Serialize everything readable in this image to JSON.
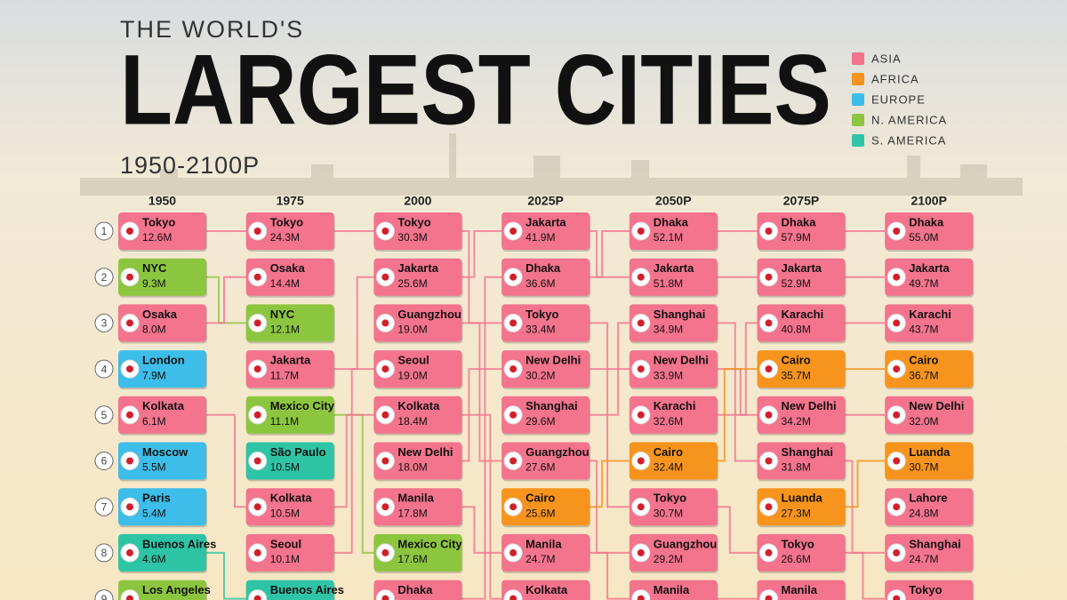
{
  "header": {
    "kicker": "THE WORLD'S",
    "title": "LARGEST CITIES",
    "subtitle": "1950-2100P"
  },
  "legend": [
    {
      "label": "ASIA",
      "color": "#f4738d"
    },
    {
      "label": "AFRICA",
      "color": "#f7941d"
    },
    {
      "label": "EUROPE",
      "color": "#3dbde9"
    },
    {
      "label": "N. AMERICA",
      "color": "#8cc63f"
    },
    {
      "label": "S. AMERICA",
      "color": "#2ec4a6"
    }
  ],
  "ranks": [
    "1",
    "2",
    "3",
    "4",
    "5",
    "6",
    "7",
    "8",
    "9"
  ],
  "columns": [
    {
      "label": "1950",
      "cities": [
        {
          "name": "Tokyo",
          "pop": "12.6M",
          "region": "ASIA"
        },
        {
          "name": "NYC",
          "pop": "9.3M",
          "region": "N. AMERICA"
        },
        {
          "name": "Osaka",
          "pop": "8.0M",
          "region": "ASIA"
        },
        {
          "name": "London",
          "pop": "7.9M",
          "region": "EUROPE"
        },
        {
          "name": "Kolkata",
          "pop": "6.1M",
          "region": "ASIA"
        },
        {
          "name": "Moscow",
          "pop": "5.5M",
          "region": "EUROPE"
        },
        {
          "name": "Paris",
          "pop": "5.4M",
          "region": "EUROPE"
        },
        {
          "name": "Buenos Aires",
          "pop": "4.6M",
          "region": "S. AMERICA"
        },
        {
          "name": "Los Angeles",
          "region": "N. AMERICA"
        }
      ]
    },
    {
      "label": "1975",
      "cities": [
        {
          "name": "Tokyo",
          "pop": "24.3M",
          "region": "ASIA"
        },
        {
          "name": "Osaka",
          "pop": "14.4M",
          "region": "ASIA"
        },
        {
          "name": "NYC",
          "pop": "12.1M",
          "region": "N. AMERICA"
        },
        {
          "name": "Jakarta",
          "pop": "11.7M",
          "region": "ASIA"
        },
        {
          "name": "Mexico City",
          "pop": "11.1M",
          "region": "N. AMERICA"
        },
        {
          "name": "São Paulo",
          "pop": "10.5M",
          "region": "S. AMERICA"
        },
        {
          "name": "Kolkata",
          "pop": "10.5M",
          "region": "ASIA"
        },
        {
          "name": "Seoul",
          "pop": "10.1M",
          "region": "ASIA"
        },
        {
          "name": "Buenos Aires",
          "region": "S. AMERICA"
        }
      ]
    },
    {
      "label": "2000",
      "cities": [
        {
          "name": "Tokyo",
          "pop": "30.3M",
          "region": "ASIA"
        },
        {
          "name": "Jakarta",
          "pop": "25.6M",
          "region": "ASIA"
        },
        {
          "name": "Guangzhou",
          "pop": "19.0M",
          "region": "ASIA"
        },
        {
          "name": "Seoul",
          "pop": "19.0M",
          "region": "ASIA"
        },
        {
          "name": "Kolkata",
          "pop": "18.4M",
          "region": "ASIA"
        },
        {
          "name": "New Delhi",
          "pop": "18.0M",
          "region": "ASIA"
        },
        {
          "name": "Manila",
          "pop": "17.8M",
          "region": "ASIA"
        },
        {
          "name": "Mexico City",
          "pop": "17.6M",
          "region": "N. AMERICA"
        },
        {
          "name": "Dhaka",
          "region": "ASIA"
        }
      ]
    },
    {
      "label": "2025P",
      "cities": [
        {
          "name": "Jakarta",
          "pop": "41.9M",
          "region": "ASIA"
        },
        {
          "name": "Dhaka",
          "pop": "36.6M",
          "region": "ASIA"
        },
        {
          "name": "Tokyo",
          "pop": "33.4M",
          "region": "ASIA"
        },
        {
          "name": "New Delhi",
          "pop": "30.2M",
          "region": "ASIA"
        },
        {
          "name": "Shanghai",
          "pop": "29.6M",
          "region": "ASIA"
        },
        {
          "name": "Guangzhou",
          "pop": "27.6M",
          "region": "ASIA"
        },
        {
          "name": "Cairo",
          "pop": "25.6M",
          "region": "AFRICA"
        },
        {
          "name": "Manila",
          "pop": "24.7M",
          "region": "ASIA"
        },
        {
          "name": "Kolkata",
          "region": "ASIA"
        }
      ]
    },
    {
      "label": "2050P",
      "cities": [
        {
          "name": "Dhaka",
          "pop": "52.1M",
          "region": "ASIA"
        },
        {
          "name": "Jakarta",
          "pop": "51.8M",
          "region": "ASIA"
        },
        {
          "name": "Shanghai",
          "pop": "34.9M",
          "region": "ASIA"
        },
        {
          "name": "New Delhi",
          "pop": "33.9M",
          "region": "ASIA"
        },
        {
          "name": "Karachi",
          "pop": "32.6M",
          "region": "ASIA"
        },
        {
          "name": "Cairo",
          "pop": "32.4M",
          "region": "AFRICA"
        },
        {
          "name": "Tokyo",
          "pop": "30.7M",
          "region": "ASIA"
        },
        {
          "name": "Guangzhou",
          "pop": "29.2M",
          "region": "ASIA"
        },
        {
          "name": "Manila",
          "region": "ASIA"
        }
      ]
    },
    {
      "label": "2075P",
      "cities": [
        {
          "name": "Dhaka",
          "pop": "57.9M",
          "region": "ASIA"
        },
        {
          "name": "Jakarta",
          "pop": "52.9M",
          "region": "ASIA"
        },
        {
          "name": "Karachi",
          "pop": "40.8M",
          "region": "ASIA"
        },
        {
          "name": "Cairo",
          "pop": "35.7M",
          "region": "AFRICA"
        },
        {
          "name": "New Delhi",
          "pop": "34.2M",
          "region": "ASIA"
        },
        {
          "name": "Shanghai",
          "pop": "31.8M",
          "region": "ASIA"
        },
        {
          "name": "Luanda",
          "pop": "27.3M",
          "region": "AFRICA"
        },
        {
          "name": "Tokyo",
          "pop": "26.6M",
          "region": "ASIA"
        },
        {
          "name": "Manila",
          "region": "ASIA"
        }
      ]
    },
    {
      "label": "2100P",
      "cities": [
        {
          "name": "Dhaka",
          "pop": "55.0M",
          "region": "ASIA"
        },
        {
          "name": "Jakarta",
          "pop": "49.7M",
          "region": "ASIA"
        },
        {
          "name": "Karachi",
          "pop": "43.7M",
          "region": "ASIA"
        },
        {
          "name": "Cairo",
          "pop": "36.7M",
          "region": "AFRICA"
        },
        {
          "name": "New Delhi",
          "pop": "32.0M",
          "region": "ASIA"
        },
        {
          "name": "Luanda",
          "pop": "30.7M",
          "region": "AFRICA"
        },
        {
          "name": "Lahore",
          "pop": "24.8M",
          "region": "ASIA"
        },
        {
          "name": "Shanghai",
          "pop": "24.7M",
          "region": "ASIA"
        },
        {
          "name": "Tokyo",
          "region": "ASIA"
        }
      ]
    }
  ]
}
